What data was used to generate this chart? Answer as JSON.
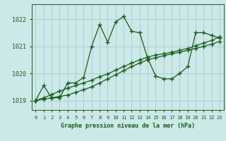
{
  "background_color": "#cce8e8",
  "grid_color": "#aacccc",
  "line_color": "#1a5c1a",
  "marker": "+",
  "marker_size": 4,
  "marker_lw": 1.0,
  "line_width": 0.9,
  "title": "Graphe pression niveau de la mer (hPa)",
  "ylim": [
    1018.65,
    1022.55
  ],
  "xlim": [
    -0.5,
    23.5
  ],
  "yticks": [
    1019,
    1020,
    1021,
    1022
  ],
  "xticks": [
    0,
    1,
    2,
    3,
    4,
    5,
    6,
    7,
    8,
    9,
    10,
    11,
    12,
    13,
    14,
    15,
    16,
    17,
    18,
    19,
    20,
    21,
    22,
    23
  ],
  "series": [
    [
      1019.0,
      1019.55,
      1019.1,
      1019.1,
      1019.65,
      1019.65,
      1019.85,
      1021.0,
      1021.8,
      1021.15,
      1021.9,
      1022.1,
      1021.55,
      1021.5,
      1020.55,
      1019.9,
      1019.8,
      1019.8,
      1020.0,
      1020.25,
      1021.5,
      1021.5,
      1021.4,
      1021.3
    ],
    [
      1019.0,
      1019.05,
      1019.1,
      1019.15,
      1019.2,
      1019.3,
      1019.4,
      1019.5,
      1019.65,
      1019.8,
      1019.95,
      1020.1,
      1020.25,
      1020.38,
      1020.5,
      1020.58,
      1020.65,
      1020.72,
      1020.78,
      1020.85,
      1020.92,
      1021.0,
      1021.08,
      1021.18
    ],
    [
      1019.0,
      1019.1,
      1019.22,
      1019.34,
      1019.46,
      1019.55,
      1019.65,
      1019.75,
      1019.88,
      1019.98,
      1020.12,
      1020.25,
      1020.38,
      1020.5,
      1020.6,
      1020.68,
      1020.72,
      1020.78,
      1020.85,
      1020.92,
      1021.02,
      1021.12,
      1021.22,
      1021.35
    ]
  ]
}
